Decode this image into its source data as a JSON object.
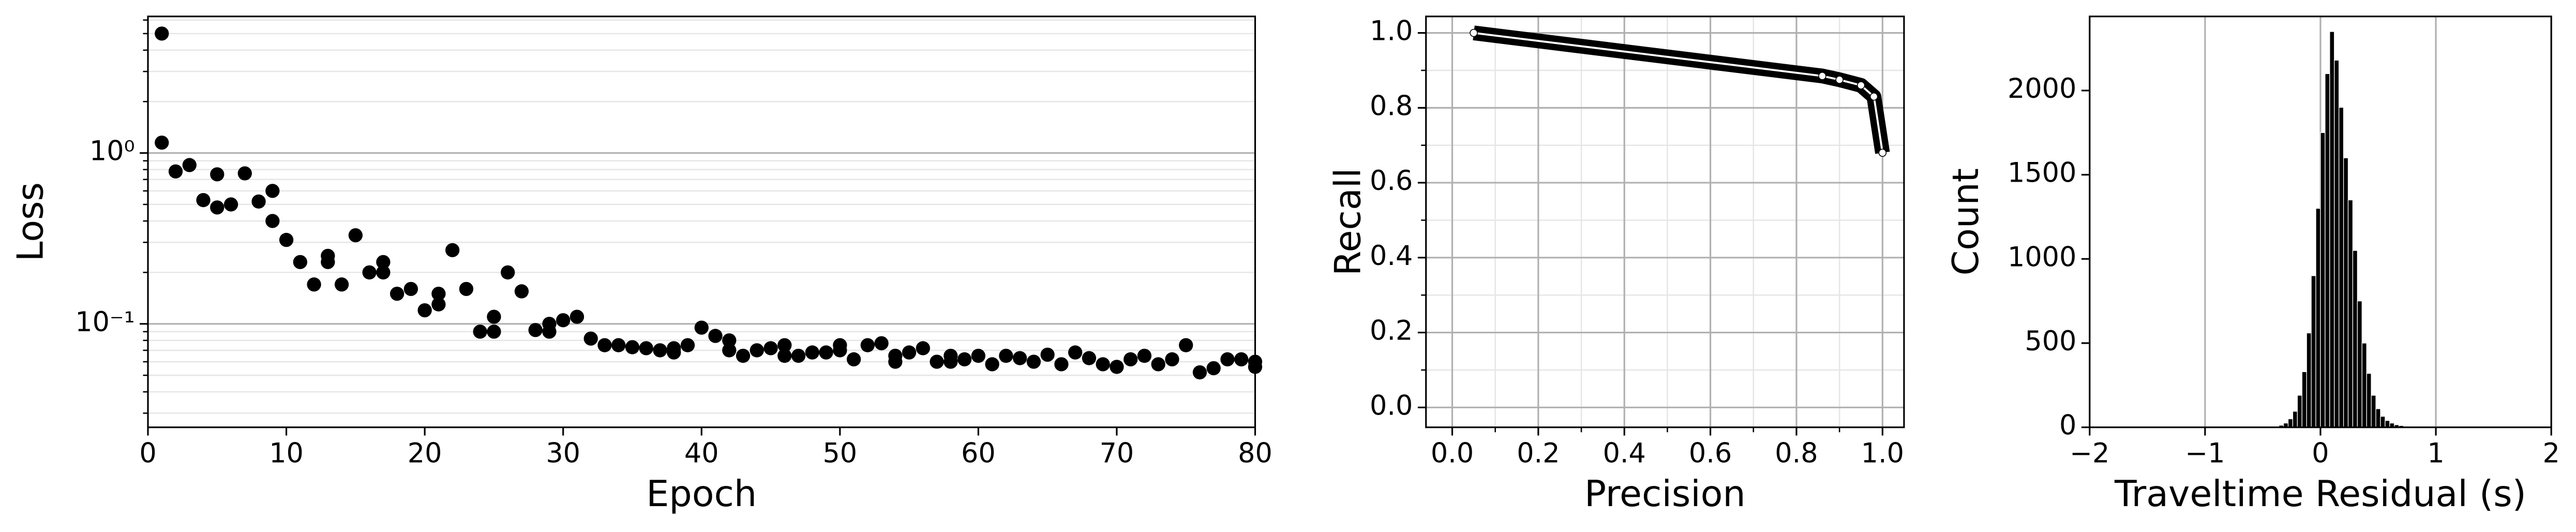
{
  "chart_data": [
    {
      "type": "scatter",
      "x_label": "Epoch",
      "y_label": "Loss",
      "color": "#000000",
      "yscale": "log",
      "grid": "y",
      "minor_grid": true,
      "xlim": [
        0,
        80
      ],
      "xticks": [
        0,
        10,
        20,
        30,
        40,
        50,
        60,
        70,
        80
      ],
      "ylim": [
        0.0248,
        6.3
      ],
      "yticks": [
        {
          "value": 0.1,
          "label": "10⁻¹"
        },
        {
          "value": 1,
          "label": "10⁰"
        }
      ],
      "x": [
        1,
        1,
        2,
        3,
        4,
        5,
        5,
        6,
        7,
        8,
        9,
        9,
        10,
        11,
        12,
        13,
        13,
        14,
        15,
        16,
        17,
        17,
        18,
        19,
        20,
        21,
        21,
        22,
        23,
        24,
        25,
        25,
        26,
        27,
        28,
        29,
        29,
        30,
        31,
        32,
        33,
        34,
        35,
        36,
        37,
        38,
        38,
        39,
        40,
        41,
        42,
        42,
        43,
        44,
        45,
        46,
        46,
        47,
        48,
        49,
        50,
        50,
        51,
        52,
        53,
        54,
        54,
        55,
        56,
        57,
        58,
        58,
        59,
        60,
        61,
        62,
        63,
        64,
        65,
        66,
        67,
        68,
        69,
        70,
        71,
        72,
        73,
        74,
        75,
        76,
        77,
        78,
        79,
        80,
        80
      ],
      "values": [
        5.0,
        1.15,
        0.78,
        0.85,
        0.53,
        0.75,
        0.48,
        0.5,
        0.76,
        0.52,
        0.6,
        0.4,
        0.31,
        0.23,
        0.17,
        0.25,
        0.23,
        0.17,
        0.33,
        0.2,
        0.23,
        0.2,
        0.15,
        0.16,
        0.12,
        0.15,
        0.13,
        0.27,
        0.16,
        0.09,
        0.11,
        0.09,
        0.2,
        0.155,
        0.092,
        0.1,
        0.09,
        0.105,
        0.11,
        0.082,
        0.075,
        0.075,
        0.073,
        0.072,
        0.07,
        0.068,
        0.072,
        0.075,
        0.095,
        0.085,
        0.08,
        0.07,
        0.065,
        0.07,
        0.072,
        0.075,
        0.065,
        0.065,
        0.068,
        0.068,
        0.07,
        0.075,
        0.062,
        0.075,
        0.077,
        0.065,
        0.06,
        0.068,
        0.072,
        0.06,
        0.065,
        0.06,
        0.062,
        0.065,
        0.058,
        0.065,
        0.063,
        0.06,
        0.066,
        0.058,
        0.068,
        0.063,
        0.058,
        0.056,
        0.062,
        0.065,
        0.058,
        0.062,
        0.075,
        0.052,
        0.055,
        0.062,
        0.062,
        0.06,
        0.056
      ]
    },
    {
      "type": "line",
      "x_label": "Precision",
      "y_label": "Recall",
      "color": "#000000",
      "marker_color": "#ffffff",
      "grid": "both",
      "minor_grid": true,
      "xlim": [
        -0.061,
        1.05
      ],
      "xticks": [
        {
          "value": 0,
          "label": "0.0"
        },
        0.2,
        0.4,
        0.6,
        0.8,
        {
          "value": 1,
          "label": "1.0"
        }
      ],
      "ylim": [
        -0.053,
        1.044
      ],
      "yticks": [
        {
          "value": 0,
          "label": "0.0"
        },
        0.2,
        0.4,
        0.6,
        0.8,
        {
          "value": 1,
          "label": "1.0"
        }
      ],
      "x": [
        0.05,
        0.86,
        0.9,
        0.95,
        0.98,
        1.0
      ],
      "values": [
        1.0,
        0.885,
        0.875,
        0.86,
        0.83,
        0.68
      ]
    },
    {
      "type": "histogram",
      "x_label": "Traveltime Residual (s)",
      "y_label": "Count",
      "color": "#000000",
      "edge_color": "#ffffff",
      "grid": "x",
      "minor_grid": false,
      "xlim": [
        -2,
        2
      ],
      "xticks": [
        {
          "value": -2,
          "label": "−2"
        },
        {
          "value": -1,
          "label": "−1"
        },
        0,
        1,
        2
      ],
      "ylim": [
        0,
        2440
      ],
      "yticks": [
        0,
        500,
        1000,
        1500,
        2000
      ],
      "bins": [
        -2,
        -1.96,
        -1.92,
        -1.88,
        -1.84,
        -1.8,
        -1.76,
        -1.72,
        -1.68,
        -1.64,
        -1.6,
        -1.56,
        -1.52,
        -1.48,
        -1.44,
        -1.4,
        -1.36,
        -1.32,
        -1.28,
        -1.24,
        -1.2,
        -1.16,
        -1.12,
        -1.08,
        -1.04,
        -1,
        -0.96,
        -0.92,
        -0.88,
        -0.84,
        -0.8,
        -0.76,
        -0.72,
        -0.68,
        -0.64,
        -0.6,
        -0.56,
        -0.52,
        -0.48,
        -0.44,
        -0.4,
        -0.36,
        -0.32,
        -0.28,
        -0.24,
        -0.2,
        -0.16,
        -0.12,
        -0.08,
        -0.04,
        0,
        0.04,
        0.08,
        0.12,
        0.16,
        0.2,
        0.24,
        0.28,
        0.32,
        0.36,
        0.4,
        0.44,
        0.48,
        0.52,
        0.56,
        0.6,
        0.64,
        0.68,
        0.72,
        0.76,
        0.8,
        0.84,
        0.88,
        0.92,
        0.96,
        1,
        1.04,
        1.08,
        1.12,
        1.16,
        1.2,
        1.24,
        1.28,
        1.32,
        1.36,
        1.4,
        1.44,
        1.48,
        1.52,
        1.56,
        1.6,
        1.64,
        1.68,
        1.72,
        1.76,
        1.8,
        1.84,
        1.88,
        1.92,
        1.96,
        2
      ],
      "values": [
        0,
        0,
        0,
        0,
        0,
        0,
        0,
        0,
        0,
        0,
        0,
        0,
        0,
        0,
        0,
        0,
        0,
        0,
        0,
        0,
        0,
        0,
        0,
        0,
        0,
        0,
        0,
        0,
        0,
        0,
        0,
        0,
        0,
        0,
        0,
        0,
        0,
        0,
        0,
        0,
        5,
        12,
        25,
        50,
        95,
        190,
        330,
        560,
        900,
        1300,
        1750,
        2100,
        2350,
        2180,
        1900,
        1600,
        1350,
        1050,
        750,
        500,
        320,
        190,
        110,
        65,
        40,
        25,
        15,
        10,
        6,
        4,
        2,
        0,
        0,
        0,
        0,
        0,
        0,
        0,
        0,
        0,
        0,
        0,
        0,
        0,
        0,
        0,
        0,
        0,
        0,
        0,
        0,
        0,
        0,
        0,
        0,
        0,
        0,
        0,
        0,
        0
      ]
    }
  ]
}
